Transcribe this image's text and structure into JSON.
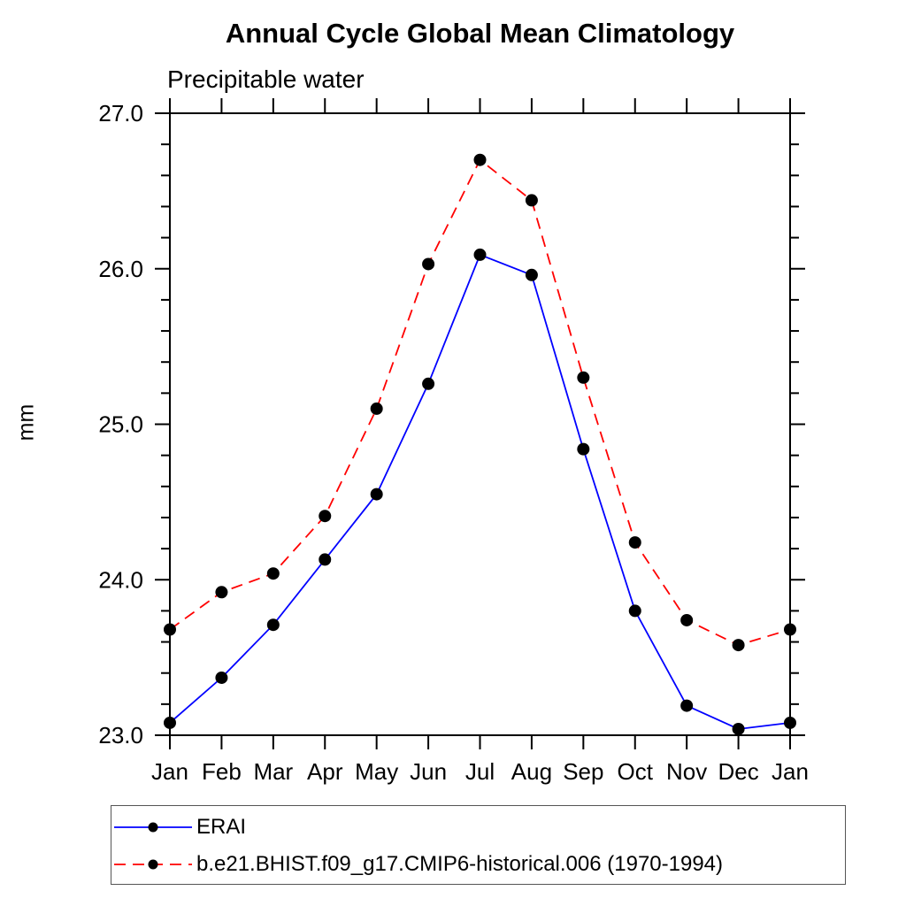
{
  "header": {
    "title": "Annual Cycle Global Mean Climatology",
    "subtitle": "Precipitable water"
  },
  "chart_data": {
    "type": "line",
    "title": "Annual Cycle Global Mean Climatology",
    "subtitle": "Precipitable water",
    "xlabel": "",
    "ylabel": "mm",
    "categories": [
      "Jan",
      "Feb",
      "Mar",
      "Apr",
      "May",
      "Jun",
      "Jul",
      "Aug",
      "Sep",
      "Oct",
      "Nov",
      "Dec",
      "Jan"
    ],
    "ylim": [
      23.0,
      27.0
    ],
    "ytick_major": [
      23.0,
      24.0,
      25.0,
      26.0,
      27.0
    ],
    "ytick_labels": [
      "23.0",
      "24.0",
      "25.0",
      "26.0",
      "27.0"
    ],
    "ytick_minor_step": 0.2,
    "grid": false,
    "frame_color": "#000000",
    "marker_color": "#000000",
    "legend_position": "bottom-left-box",
    "series": [
      {
        "name": "ERAI",
        "color": "#0000ff",
        "line_style": "solid",
        "marker": "filled-circle",
        "values": [
          23.08,
          23.37,
          23.71,
          24.13,
          24.55,
          25.26,
          26.09,
          25.96,
          24.84,
          23.8,
          23.19,
          23.04,
          23.08
        ]
      },
      {
        "name": "b.e21.BHIST.f09_g17.CMIP6-historical.006 (1970-1994)",
        "color": "#ff0000",
        "line_style": "dashed",
        "marker": "filled-circle",
        "values": [
          23.68,
          23.92,
          24.04,
          24.41,
          25.1,
          26.03,
          26.7,
          26.44,
          25.3,
          24.24,
          23.74,
          23.58,
          23.68
        ]
      }
    ]
  }
}
